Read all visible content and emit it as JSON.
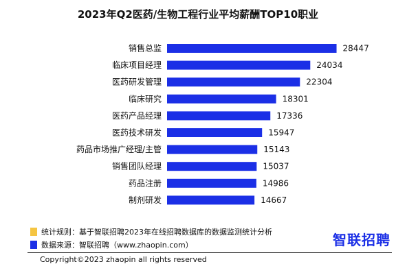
{
  "chart_data": {
    "type": "bar",
    "orientation": "horizontal",
    "title": "2023年Q2医药/生物工程行业平均薪酬TOP10职业",
    "categories": [
      "销售总监",
      "临床项目经理",
      "医药研发管理",
      "临床研究",
      "医药产品经理",
      "医药技术研发",
      "药品市场推广经理/主管",
      "销售团队经理",
      "药品注册",
      "制剂研发"
    ],
    "values": [
      28447,
      24034,
      22304,
      18301,
      17336,
      15947,
      15143,
      15037,
      14986,
      14667
    ],
    "xlabel": "",
    "ylabel": "",
    "xlim": [
      0,
      30000
    ],
    "grid": false,
    "legend": "none",
    "bar_color": "#1b2fe6"
  },
  "footer": {
    "rule_note": "统计规则：基于智联招聘2023年在线招聘数据库的数据监测统计分析",
    "source_note": "数据来源：智联招聘（www.zhaopin.com）",
    "rule_color": "#f5c542",
    "source_color": "#1b2fe6",
    "logo_text": "智联招聘",
    "logo_color": "#1b2fe6",
    "copyright": "Copyright©2023 zhaopin all rights reserved"
  }
}
